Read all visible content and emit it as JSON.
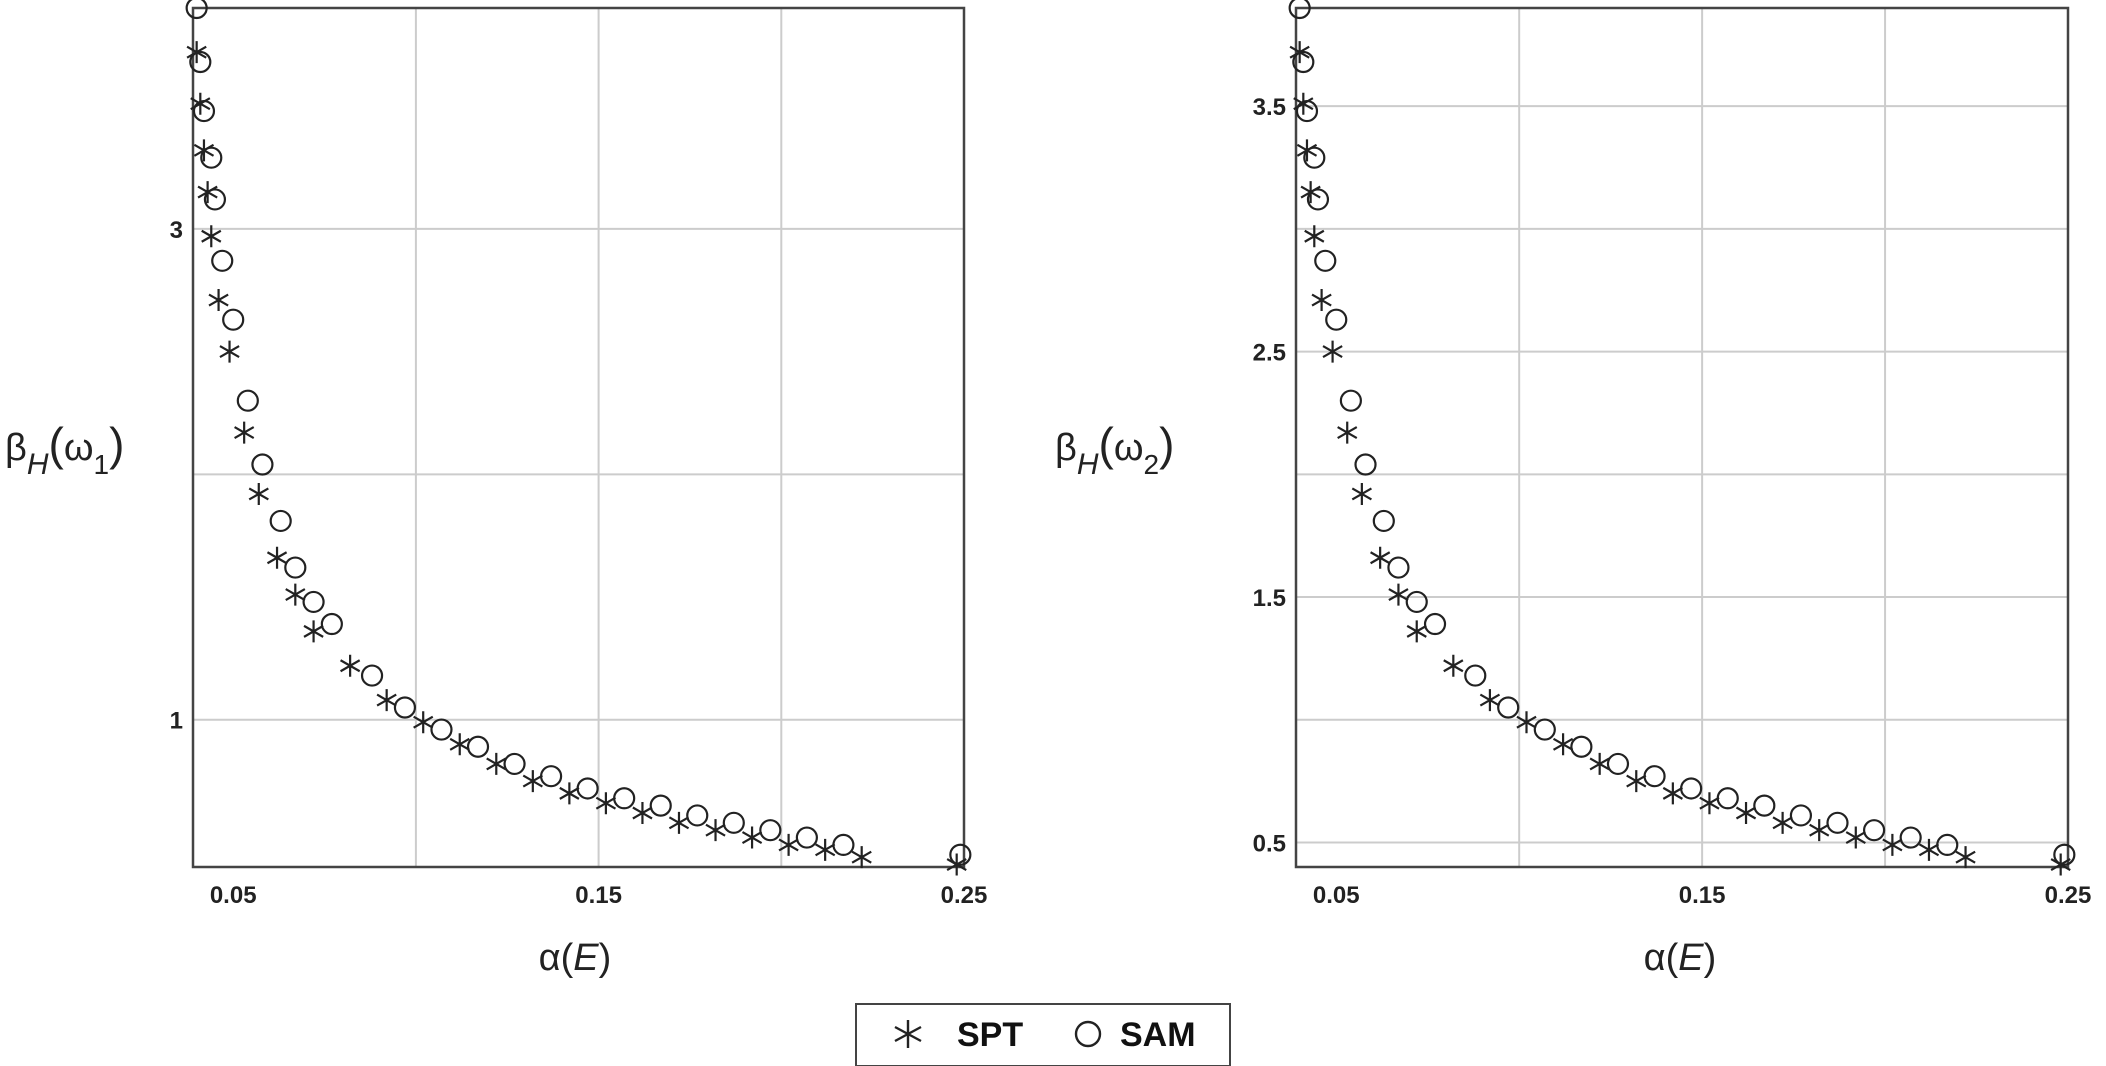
{
  "chart_data": [
    {
      "type": "scatter",
      "xlabel": "α(E)",
      "xlabel_parts": {
        "base": "α(",
        "ital": "E",
        "tail": ")"
      },
      "ylabel": "βH(ω1)",
      "ylabel_parts": {
        "beta": "β",
        "sub1": "H",
        "open": "(",
        "omega": "ω",
        "sub2": "1",
        "close": ")"
      },
      "xlim": [
        0.039,
        0.25
      ],
      "ylim": [
        0.4,
        3.9
      ],
      "xticks": [
        0.05,
        0.15,
        0.25
      ],
      "xtick_labels": [
        "0.05",
        "0.15",
        "0.25"
      ],
      "yticks": [
        1,
        3
      ],
      "ytick_labels": [
        "1",
        "3"
      ],
      "xgrid": [
        0.1,
        0.15,
        0.2
      ],
      "ygrid": [
        1,
        2,
        3
      ],
      "grid": true,
      "series": [
        {
          "name": "SPT",
          "marker": "star",
          "x": [
            0.04,
            0.041,
            0.042,
            0.043,
            0.044,
            0.046,
            0.049,
            0.053,
            0.057,
            0.062,
            0.067,
            0.072,
            0.082,
            0.092,
            0.102,
            0.112,
            0.122,
            0.132,
            0.142,
            0.152,
            0.162,
            0.172,
            0.182,
            0.192,
            0.202,
            0.212,
            0.222,
            0.248
          ],
          "y": [
            3.72,
            3.51,
            3.32,
            3.15,
            2.97,
            2.71,
            2.5,
            2.17,
            1.92,
            1.66,
            1.51,
            1.36,
            1.22,
            1.08,
            0.99,
            0.9,
            0.82,
            0.75,
            0.7,
            0.66,
            0.62,
            0.58,
            0.55,
            0.52,
            0.49,
            0.47,
            0.44,
            0.41
          ]
        },
        {
          "name": "SAM",
          "marker": "circle",
          "x": [
            0.04,
            0.041,
            0.042,
            0.044,
            0.045,
            0.047,
            0.05,
            0.054,
            0.058,
            0.063,
            0.067,
            0.072,
            0.077,
            0.088,
            0.097,
            0.107,
            0.117,
            0.127,
            0.137,
            0.147,
            0.157,
            0.167,
            0.177,
            0.187,
            0.197,
            0.207,
            0.217,
            0.249
          ],
          "y": [
            3.9,
            3.68,
            3.48,
            3.29,
            3.12,
            2.87,
            2.63,
            2.3,
            2.04,
            1.81,
            1.62,
            1.48,
            1.39,
            1.18,
            1.05,
            0.96,
            0.89,
            0.82,
            0.77,
            0.72,
            0.68,
            0.65,
            0.61,
            0.58,
            0.55,
            0.52,
            0.49,
            0.45
          ]
        }
      ]
    },
    {
      "type": "scatter",
      "xlabel": "α(E)",
      "xlabel_parts": {
        "base": "α(",
        "ital": "E",
        "tail": ")"
      },
      "ylabel": "βH(ω2)",
      "ylabel_parts": {
        "beta": "β",
        "sub1": "H",
        "open": "(",
        "omega": "ω",
        "sub2": "2",
        "close": ")"
      },
      "xlim": [
        0.039,
        0.25
      ],
      "ylim": [
        0.4,
        3.9
      ],
      "xticks": [
        0.05,
        0.15,
        0.25
      ],
      "xtick_labels": [
        "0.05",
        "0.15",
        "0.25"
      ],
      "yticks": [
        0.5,
        1.5,
        2.5,
        3.5
      ],
      "ytick_labels": [
        "0.5",
        "1.5",
        "2.5",
        "3.5"
      ],
      "xgrid": [
        0.1,
        0.15,
        0.2
      ],
      "ygrid": [
        0.5,
        1,
        1.5,
        2,
        2.5,
        3,
        3.5
      ],
      "grid": true,
      "series": [
        {
          "name": "SPT",
          "marker": "star",
          "x": [
            0.04,
            0.041,
            0.042,
            0.043,
            0.044,
            0.046,
            0.049,
            0.053,
            0.057,
            0.062,
            0.067,
            0.072,
            0.082,
            0.092,
            0.102,
            0.112,
            0.122,
            0.132,
            0.142,
            0.152,
            0.162,
            0.172,
            0.182,
            0.192,
            0.202,
            0.212,
            0.222,
            0.248
          ],
          "y": [
            3.72,
            3.51,
            3.32,
            3.15,
            2.97,
            2.71,
            2.5,
            2.17,
            1.92,
            1.66,
            1.51,
            1.36,
            1.22,
            1.08,
            0.99,
            0.9,
            0.82,
            0.75,
            0.7,
            0.66,
            0.62,
            0.58,
            0.55,
            0.52,
            0.49,
            0.47,
            0.44,
            0.41
          ]
        },
        {
          "name": "SAM",
          "marker": "circle",
          "x": [
            0.04,
            0.041,
            0.042,
            0.044,
            0.045,
            0.047,
            0.05,
            0.054,
            0.058,
            0.063,
            0.067,
            0.072,
            0.077,
            0.088,
            0.097,
            0.107,
            0.117,
            0.127,
            0.137,
            0.147,
            0.157,
            0.167,
            0.177,
            0.187,
            0.197,
            0.207,
            0.217,
            0.249
          ],
          "y": [
            3.9,
            3.68,
            3.48,
            3.29,
            3.12,
            2.87,
            2.63,
            2.3,
            2.04,
            1.81,
            1.62,
            1.48,
            1.39,
            1.18,
            1.05,
            0.96,
            0.89,
            0.82,
            0.77,
            0.72,
            0.68,
            0.65,
            0.61,
            0.58,
            0.55,
            0.52,
            0.49,
            0.45
          ]
        }
      ]
    }
  ],
  "legend": {
    "placement": "bottom-center",
    "items": [
      {
        "label": "SPT",
        "marker": "star"
      },
      {
        "label": "SAM",
        "marker": "circle"
      }
    ]
  },
  "colors": {
    "frame": "#444444",
    "grid": "#cccccc",
    "marker": "#222222",
    "text": "#222222"
  }
}
